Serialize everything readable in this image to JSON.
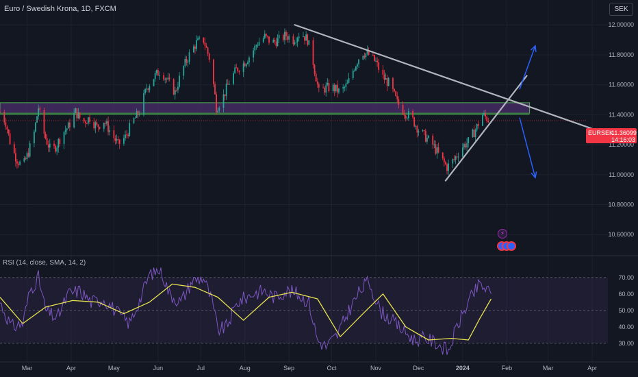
{
  "header": {
    "title": "Euro / Swedish Krona, 1D, FXCM",
    "currency_button": "SEK"
  },
  "price_badge": {
    "symbol": "EURSEK",
    "price": "11.36099",
    "countdown": "14:16:03"
  },
  "rsi_panel": {
    "title": "RSI (14, close, SMA, 14, 2)"
  },
  "icons": [
    "lightning-icon",
    "event-icon"
  ],
  "colors": {
    "background": "#131722",
    "up": "#26a69a",
    "down": "#f23645",
    "rsi_line": "#7e57c2",
    "rsi_ma": "#e8e34f",
    "zone_border": "#4caf50",
    "zone_fill": "#4a2d6b",
    "trendline": "#b2b5be",
    "arrow": "#2962ff"
  },
  "chart_data": [
    {
      "type": "candlestick",
      "title": "Euro / Swedish Krona, 1D, FXCM",
      "ylabel": "SEK",
      "ylim": [
        10.45,
        12.12
      ],
      "y_ticks": [
        "12.00000",
        "11.80000",
        "11.60000",
        "11.40000",
        "11.20000",
        "11.00000",
        "10.80000",
        "10.60000"
      ],
      "x_ticks": [
        "Mar",
        "Apr",
        "May",
        "Jun",
        "Jul",
        "Aug",
        "Sep",
        "Oct",
        "Nov",
        "Dec",
        "2024",
        "Feb",
        "Mar",
        "Apr"
      ],
      "x_tick_dates": [
        "2023-03-01",
        "2023-04-01",
        "2023-05-01",
        "2023-06-01",
        "2023-07-01",
        "2023-08-01",
        "2023-09-01",
        "2023-10-01",
        "2023-11-01",
        "2023-12-01",
        "2024-01-01",
        "2024-02-01",
        "2024-03-01",
        "2024-04-01"
      ],
      "x_range": [
        "2023-02-10",
        "2024-04-12"
      ],
      "last_price": 11.36099,
      "series": [
        {
          "close_path": [
            [
              "2023-02-10",
              11.42
            ],
            [
              "2023-02-14",
              11.35
            ],
            [
              "2023-02-18",
              11.18
            ],
            [
              "2023-02-22",
              11.1
            ],
            [
              "2023-02-26",
              11.05
            ],
            [
              "2023-03-02",
              11.15
            ],
            [
              "2023-03-06",
              11.28
            ],
            [
              "2023-03-09",
              11.45
            ],
            [
              "2023-03-12",
              11.3
            ],
            [
              "2023-03-15",
              11.22
            ],
            [
              "2023-03-18",
              11.15
            ],
            [
              "2023-03-22",
              11.2
            ],
            [
              "2023-03-26",
              11.28
            ],
            [
              "2023-03-30",
              11.32
            ],
            [
              "2023-04-04",
              11.42
            ],
            [
              "2023-04-09",
              11.35
            ],
            [
              "2023-04-14",
              11.38
            ],
            [
              "2023-04-19",
              11.32
            ],
            [
              "2023-04-24",
              11.36
            ],
            [
              "2023-04-29",
              11.28
            ],
            [
              "2023-05-04",
              11.2
            ],
            [
              "2023-05-09",
              11.25
            ],
            [
              "2023-05-14",
              11.35
            ],
            [
              "2023-05-19",
              11.42
            ],
            [
              "2023-05-24",
              11.58
            ],
            [
              "2023-05-29",
              11.65
            ],
            [
              "2023-06-03",
              11.7
            ],
            [
              "2023-06-08",
              11.62
            ],
            [
              "2023-06-13",
              11.55
            ],
            [
              "2023-06-18",
              11.7
            ],
            [
              "2023-06-23",
              11.8
            ],
            [
              "2023-06-28",
              11.88
            ],
            [
              "2023-07-03",
              11.9
            ],
            [
              "2023-07-08",
              11.75
            ],
            [
              "2023-07-12",
              11.45
            ],
            [
              "2023-07-16",
              11.5
            ],
            [
              "2023-07-21",
              11.62
            ],
            [
              "2023-07-26",
              11.7
            ],
            [
              "2023-07-31",
              11.74
            ],
            [
              "2023-08-05",
              11.8
            ],
            [
              "2023-08-10",
              11.88
            ],
            [
              "2023-08-15",
              11.92
            ],
            [
              "2023-08-20",
              11.88
            ],
            [
              "2023-08-25",
              11.9
            ],
            [
              "2023-08-30",
              11.93
            ],
            [
              "2023-09-04",
              11.9
            ],
            [
              "2023-09-09",
              11.95
            ],
            [
              "2023-09-14",
              11.9
            ],
            [
              "2023-09-18",
              11.75
            ],
            [
              "2023-09-22",
              11.55
            ],
            [
              "2023-09-27",
              11.58
            ],
            [
              "2023-10-02",
              11.58
            ],
            [
              "2023-10-07",
              11.55
            ],
            [
              "2023-10-12",
              11.6
            ],
            [
              "2023-10-17",
              11.72
            ],
            [
              "2023-10-22",
              11.82
            ],
            [
              "2023-10-27",
              11.8
            ],
            [
              "2023-11-01",
              11.75
            ],
            [
              "2023-11-06",
              11.65
            ],
            [
              "2023-11-11",
              11.6
            ],
            [
              "2023-11-16",
              11.48
            ],
            [
              "2023-11-21",
              11.42
            ],
            [
              "2023-11-26",
              11.38
            ],
            [
              "2023-12-01",
              11.3
            ],
            [
              "2023-12-06",
              11.25
            ],
            [
              "2023-12-11",
              11.2
            ],
            [
              "2023-12-16",
              11.12
            ],
            [
              "2023-12-21",
              11.05
            ],
            [
              "2023-12-26",
              11.1
            ],
            [
              "2023-12-31",
              11.18
            ],
            [
              "2024-01-05",
              11.22
            ],
            [
              "2024-01-10",
              11.3
            ],
            [
              "2024-01-15",
              11.4
            ],
            [
              "2024-01-20",
              11.36
            ]
          ]
        }
      ],
      "annotations": [
        {
          "kind": "descending-trendline",
          "from": [
            "2023-09-05",
            12.0
          ],
          "to": [
            "2024-04-12",
            11.27
          ]
        },
        {
          "kind": "rising-trendline",
          "from": [
            "2023-12-20",
            10.96
          ],
          "to": [
            "2024-02-15",
            11.66
          ]
        },
        {
          "kind": "zone",
          "x_from": "2023-02-10",
          "x_to": "2024-02-17",
          "y_from": 11.41,
          "y_to": 11.48
        },
        {
          "kind": "arrow-up",
          "from": [
            "2024-02-10",
            11.57
          ],
          "to": [
            "2024-02-21",
            11.86
          ]
        },
        {
          "kind": "arrow-down",
          "from": [
            "2024-02-10",
            11.38
          ],
          "to": [
            "2024-02-21",
            10.98
          ]
        }
      ]
    },
    {
      "type": "line",
      "title": "RSI (14, close, SMA, 14, 2)",
      "ylim": [
        22,
        77
      ],
      "y_ticks": [
        "70.00",
        "60.00",
        "50.00",
        "40.00",
        "30.00"
      ],
      "bands": {
        "upper": 70,
        "lower": 30
      },
      "series": [
        {
          "name": "RSI",
          "values": [
            [
              "2023-02-10",
              55
            ],
            [
              "2023-02-18",
              40
            ],
            [
              "2023-02-26",
              42
            ],
            [
              "2023-03-03",
              62
            ],
            [
              "2023-03-09",
              70
            ],
            [
              "2023-03-14",
              50
            ],
            [
              "2023-03-22",
              45
            ],
            [
              "2023-03-30",
              60
            ],
            [
              "2023-04-07",
              62
            ],
            [
              "2023-04-15",
              55
            ],
            [
              "2023-04-24",
              57
            ],
            [
              "2023-05-04",
              48
            ],
            [
              "2023-05-12",
              42
            ],
            [
              "2023-05-20",
              58
            ],
            [
              "2023-05-26",
              72
            ],
            [
              "2023-06-03",
              75
            ],
            [
              "2023-06-09",
              60
            ],
            [
              "2023-06-17",
              55
            ],
            [
              "2023-06-25",
              68
            ],
            [
              "2023-07-03",
              70
            ],
            [
              "2023-07-09",
              55
            ],
            [
              "2023-07-13",
              38
            ],
            [
              "2023-07-19",
              40
            ],
            [
              "2023-07-27",
              55
            ],
            [
              "2023-08-06",
              60
            ],
            [
              "2023-08-14",
              62
            ],
            [
              "2023-08-22",
              58
            ],
            [
              "2023-08-30",
              62
            ],
            [
              "2023-09-07",
              60
            ],
            [
              "2023-09-15",
              55
            ],
            [
              "2023-09-21",
              32
            ],
            [
              "2023-09-27",
              28
            ],
            [
              "2023-10-05",
              35
            ],
            [
              "2023-10-13",
              50
            ],
            [
              "2023-10-21",
              62
            ],
            [
              "2023-10-27",
              68
            ],
            [
              "2023-11-04",
              50
            ],
            [
              "2023-11-12",
              44
            ],
            [
              "2023-11-20",
              38
            ],
            [
              "2023-11-28",
              32
            ],
            [
              "2023-12-06",
              33
            ],
            [
              "2023-12-14",
              30
            ],
            [
              "2023-12-22",
              25
            ],
            [
              "2023-12-28",
              40
            ],
            [
              "2024-01-05",
              55
            ],
            [
              "2024-01-13",
              66
            ],
            [
              "2024-01-21",
              60
            ]
          ]
        },
        {
          "name": "RSI-based MA",
          "values": [
            [
              "2023-02-10",
              58
            ],
            [
              "2023-02-26",
              42
            ],
            [
              "2023-03-14",
              52
            ],
            [
              "2023-04-02",
              56
            ],
            [
              "2023-04-20",
              55
            ],
            [
              "2023-05-08",
              48
            ],
            [
              "2023-05-26",
              55
            ],
            [
              "2023-06-11",
              66
            ],
            [
              "2023-06-27",
              64
            ],
            [
              "2023-07-13",
              58
            ],
            [
              "2023-07-31",
              44
            ],
            [
              "2023-08-18",
              58
            ],
            [
              "2023-09-03",
              61
            ],
            [
              "2023-09-21",
              57
            ],
            [
              "2023-10-07",
              34
            ],
            [
              "2023-10-23",
              48
            ],
            [
              "2023-11-06",
              60
            ],
            [
              "2023-11-22",
              40
            ],
            [
              "2023-12-08",
              32
            ],
            [
              "2023-12-24",
              33
            ],
            [
              "2024-01-05",
              32
            ],
            [
              "2024-01-13",
              45
            ],
            [
              "2024-01-21",
              57
            ]
          ]
        }
      ]
    }
  ]
}
